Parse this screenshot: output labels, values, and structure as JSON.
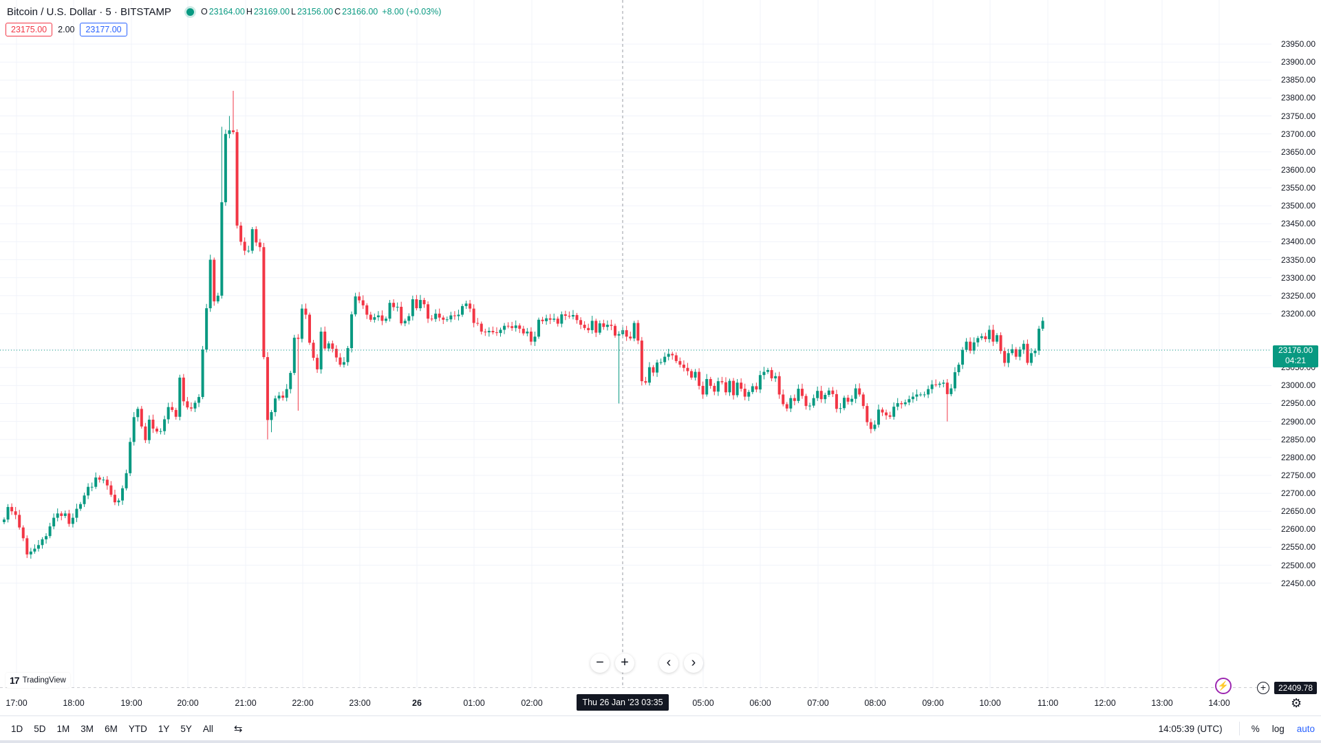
{
  "header": {
    "symbol": "Bitcoin / U.S. Dollar · 5 · BITSTAMP",
    "open_label": "O",
    "open": "23164.00",
    "high_label": "H",
    "high": "23169.00",
    "low_label": "L",
    "low": "23156.00",
    "close_label": "C",
    "close": "23166.00",
    "change": "+8.00 (+0.03%)",
    "status_color": "#089981"
  },
  "quotes": {
    "sell": "23175.00",
    "spread": "2.00",
    "buy": "23177.00"
  },
  "price_axis": {
    "labels": [
      "23950.00",
      "23900.00",
      "23850.00",
      "23800.00",
      "23750.00",
      "23700.00",
      "23650.00",
      "23600.00",
      "23550.00",
      "23500.00",
      "23450.00",
      "23400.00",
      "23350.00",
      "23300.00",
      "23250.00",
      "23200.00",
      "23100.00",
      "23050.00",
      "23000.00",
      "22950.00",
      "22900.00",
      "22850.00",
      "22800.00",
      "22750.00",
      "22700.00",
      "22650.00",
      "22600.00",
      "22550.00",
      "22500.00",
      "22450.00"
    ],
    "last_price": "23176.00",
    "countdown": "04:21",
    "low_marker": "22409.78"
  },
  "time_axis": {
    "labels": [
      {
        "text": "17:00",
        "bold": false
      },
      {
        "text": "18:00",
        "bold": false
      },
      {
        "text": "19:00",
        "bold": false
      },
      {
        "text": "20:00",
        "bold": false
      },
      {
        "text": "21:00",
        "bold": false
      },
      {
        "text": "22:00",
        "bold": false
      },
      {
        "text": "23:00",
        "bold": false
      },
      {
        "text": "26",
        "bold": true
      },
      {
        "text": "01:00",
        "bold": false
      },
      {
        "text": "02:00",
        "bold": false
      },
      {
        "text": "05:00",
        "bold": false
      },
      {
        "text": "06:00",
        "bold": false
      },
      {
        "text": "07:00",
        "bold": false
      },
      {
        "text": "08:00",
        "bold": false
      },
      {
        "text": "09:00",
        "bold": false
      },
      {
        "text": "10:00",
        "bold": false
      },
      {
        "text": "11:00",
        "bold": false
      },
      {
        "text": "12:00",
        "bold": false
      },
      {
        "text": "13:00",
        "bold": false
      },
      {
        "text": "14:00",
        "bold": false
      }
    ],
    "crosshair": "Thu 26 Jan '23   03:35"
  },
  "nav": {
    "zoom_out": "−",
    "zoom_in": "+",
    "back": "‹",
    "forward": "›"
  },
  "logo": {
    "mark": "17",
    "text": "TradingView"
  },
  "bottom_bar": {
    "ranges": [
      "1D",
      "5D",
      "1M",
      "3M",
      "6M",
      "YTD",
      "1Y",
      "5Y",
      "All"
    ],
    "clock": "14:05:39 (UTC)",
    "percent": "%",
    "log": "log",
    "auto": "auto"
  },
  "colors": {
    "up": "#089981",
    "down": "#f23645",
    "accent": "#2962ff"
  },
  "chart_data": {
    "type": "candlestick",
    "title": "Bitcoin / U.S. Dollar · 5 · BITSTAMP",
    "ylim": [
      22409.78,
      23950
    ],
    "grid": true,
    "close": [
      22627,
      22662,
      22650,
      22640,
      22605,
      22575,
      22530,
      22538,
      22546,
      22556,
      22572,
      22581,
      22608,
      22632,
      22644,
      22637,
      22644,
      22615,
      22632,
      22657,
      22670,
      22694,
      22718,
      22718,
      22744,
      22738,
      22738,
      22722,
      22696,
      22675,
      22680,
      22714,
      22756,
      22843,
      22912,
      22935,
      22886,
      22848,
      22905,
      22880,
      22872,
      22873,
      22906,
      22940,
      22932,
      22913,
      23022,
      22956,
      22939,
      22936,
      22952,
      22968,
      23100,
      23215,
      23350,
      23234,
      23250,
      23510,
      23700,
      23710,
      23705,
      23445,
      23400,
      23375,
      23375,
      23435,
      23398,
      23385,
      23079,
      22904,
      22926,
      22964,
      22972,
      22966,
      22990,
      23035,
      23133,
      23130,
      23214,
      23197,
      23119,
      23077,
      23045,
      23150,
      23103,
      23117,
      23102,
      23078,
      23058,
      23065,
      23104,
      23198,
      23248,
      23237,
      23223,
      23197,
      23183,
      23190,
      23195,
      23180,
      23186,
      23230,
      23218,
      23219,
      23173,
      23180,
      23193,
      23240,
      23215,
      23238,
      23226,
      23186,
      23185,
      23200,
      23189,
      23183,
      23184,
      23195,
      23193,
      23197,
      23221,
      23228,
      23214,
      23174,
      23172,
      23150,
      23148,
      23152,
      23148,
      23146,
      23155,
      23166,
      23165,
      23160,
      23167,
      23158,
      23145,
      23150,
      23122,
      23136,
      23183,
      23179,
      23187,
      23183,
      23186,
      23172,
      23198,
      23194,
      23192,
      23196,
      23182,
      23169,
      23160,
      23154,
      23180,
      23147,
      23173,
      23163,
      23169,
      23166,
      23139,
      23143,
      23154,
      23136,
      23131,
      23174,
      23125,
      23012,
      23008,
      23051,
      23036,
      23064,
      23065,
      23080,
      23088,
      23084,
      23068,
      23058,
      23049,
      23040,
      23022,
      23038,
      22999,
      22975,
      23018,
      22999,
      22983,
      23012,
      23009,
      22981,
      23013,
      22973,
      23008,
      22991,
      22969,
      22982,
      22998,
      22989,
      23029,
      23038,
      23043,
      23020,
      23026,
      22975,
      22948,
      22936,
      22965,
      22957,
      22991,
      22971,
      22943,
      22944,
      22965,
      22985,
      22962,
      22974,
      22986,
      22976,
      22935,
      22937,
      22966,
      22955,
      22963,
      22992,
      22975,
      22943,
      22898,
      22879,
      22891,
      22933,
      22925,
      22917,
      22913,
      22941,
      22951,
      22948,
      22953,
      22962,
      22969,
      22975,
      22975,
      22975,
      22990,
      23003,
      23002,
      23005,
      23008,
      22976,
      22992,
      23037,
      23058,
      23099,
      23122,
      23097,
      23120,
      23132,
      23137,
      23129,
      23155,
      23122,
      23140,
      23096,
      23063,
      23090,
      23101,
      23080,
      23100,
      23116,
      23063,
      23090,
      23097,
      23158,
      23180
    ]
  }
}
